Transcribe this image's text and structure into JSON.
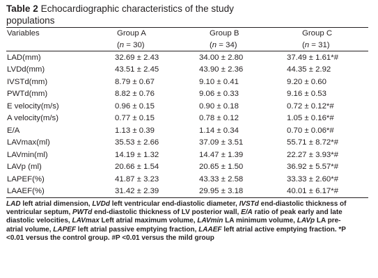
{
  "caption": {
    "label": "Table 2",
    "title_line1": "Echocardiographic characteristics of the study",
    "title_line2": "populations"
  },
  "header": {
    "variables": "Variables",
    "group_a": "Group A",
    "group_b": "Group B",
    "group_c": "Group C",
    "n_a": "30",
    "n_b": "34",
    "n_c": "31"
  },
  "rows": [
    {
      "label": "LAD(mm)",
      "a": "32.69 ± 2.43",
      "b": "34.00 ± 2.80",
      "c": "37.49 ± 1.61*#"
    },
    {
      "label": "LVDd(mm)",
      "a": "43.51 ± 2.45",
      "b": "43.90 ± 2.36",
      "c": "44.35 ± 2.92"
    },
    {
      "label": "IVSTd(mm)",
      "a": "8.79 ± 0.67",
      "b": "9.10 ± 0.41",
      "c": "9.20 ± 0.60"
    },
    {
      "label": "PWTd(mm)",
      "a": "8.82 ± 0.76",
      "b": "9.06 ± 0.33",
      "c": "9.16 ± 0.53"
    },
    {
      "label": "E velocity(m/s)",
      "a": "0.96 ± 0.15",
      "b": "0.90 ± 0.18",
      "c": "0.72 ± 0.12*#"
    },
    {
      "label": "A velocity(m/s)",
      "a": "0.77 ± 0.15",
      "b": "0.78 ± 0.12",
      "c": "1.05 ± 0.16*#"
    },
    {
      "label": "E/A",
      "a": "1.13 ± 0.39",
      "b": "1.14 ± 0.34",
      "c": "0.70 ± 0.06*#"
    },
    {
      "label": "LAVmax(ml)",
      "a": "35.53 ± 2.66",
      "b": "37.09 ± 3.51",
      "c": "55.71 ± 8.72*#"
    },
    {
      "label": "LAVmin(ml)",
      "a": "14.19 ± 1.32",
      "b": "14.47 ± 1.39",
      "c": "22.27 ± 3.93*#"
    },
    {
      "label": "LAVp (ml)",
      "a": "20.66 ± 1.54",
      "b": "20.65 ± 1.50",
      "c": "36.92 ± 5.57*#"
    },
    {
      "label": "LAPEF(%)",
      "a": "41.87 ± 3.23",
      "b": "43.33 ± 2.58",
      "c": "33.33 ± 2.60*#"
    },
    {
      "label": "LAAEF(%)",
      "a": "31.42 ± 2.39",
      "b": "29.95 ± 3.18",
      "c": "40.01 ± 6.17*#"
    }
  ],
  "footnote": {
    "lad_abbr": "LAD",
    "lad_def": " left atrial dimension, ",
    "lvdd_abbr": "LVDd",
    "lvdd_def": " left ventricular end-diastolic diameter, ",
    "ivstd_abbr": "IVSTd",
    "ivstd_def": " end-diastolic thickness of ventricular septum, ",
    "pwtd_abbr": "PWTd",
    "pwtd_def": " end-diastolic thickness of LV posterior wall, ",
    "ea_abbr": "E/A",
    "ea_def": " ratio of peak early and late diastolic velocities, ",
    "lavmax_abbr": "LAVmax",
    "lavmax_def": " Left atrial maximum volume, ",
    "lavmin_abbr": "LAVmin",
    "lavmin_def": " LA minimum volume, ",
    "lavp_abbr": "LAVp",
    "lavp_def": " LA pre-atrial volume, ",
    "lapef_abbr": "LAPEF",
    "lapef_def": " left atrial passive emptying fraction, ",
    "laaef_abbr": "LAAEF",
    "laaef_def": " left atrial active emptying fraction. ",
    "p1": "*P <0.01 versus the control group. ",
    "p2": "#P <0.01 versus the mild group"
  }
}
